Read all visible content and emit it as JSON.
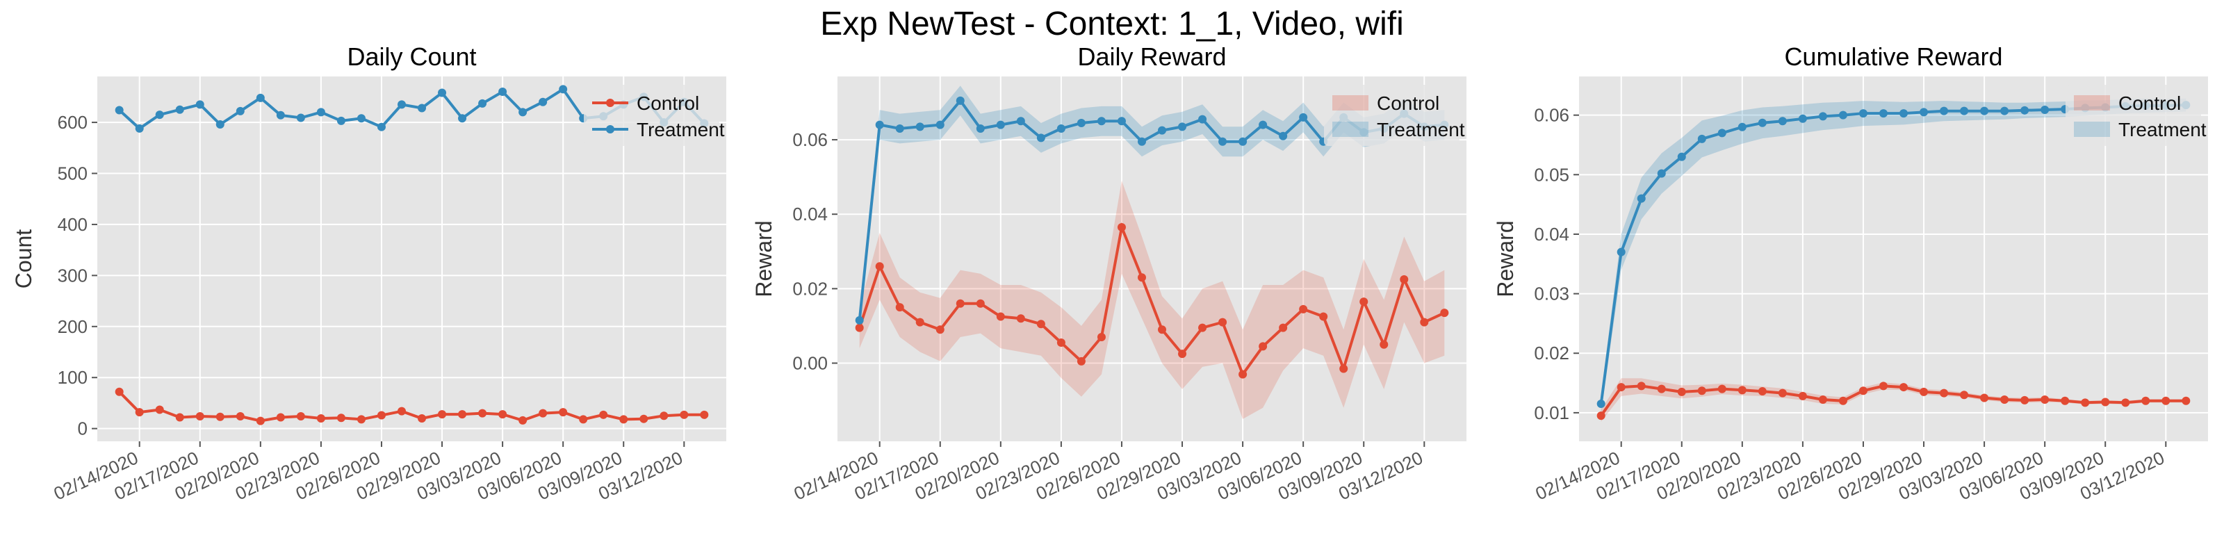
{
  "figure": {
    "title": "Exp NewTest - Context: 1_1, Video, wifi"
  },
  "colors": {
    "control": "#E24A33",
    "treatment": "#348ABD",
    "panel_bg": "#E5E5E5",
    "grid": "#FFFFFF"
  },
  "dates": [
    "02/13/2020",
    "02/14/2020",
    "02/15/2020",
    "02/16/2020",
    "02/17/2020",
    "02/18/2020",
    "02/19/2020",
    "02/20/2020",
    "02/21/2020",
    "02/22/2020",
    "02/23/2020",
    "02/24/2020",
    "02/25/2020",
    "02/26/2020",
    "02/27/2020",
    "02/28/2020",
    "02/29/2020",
    "03/01/2020",
    "03/02/2020",
    "03/03/2020",
    "03/04/2020",
    "03/05/2020",
    "03/06/2020",
    "03/07/2020",
    "03/08/2020",
    "03/09/2020",
    "03/10/2020",
    "03/11/2020",
    "03/12/2020",
    "03/13/2020"
  ],
  "x_ticks": [
    "02/14/2020",
    "02/17/2020",
    "02/20/2020",
    "02/23/2020",
    "02/26/2020",
    "02/29/2020",
    "03/03/2020",
    "03/06/2020",
    "03/09/2020",
    "03/12/2020"
  ],
  "chart_data": [
    {
      "type": "line",
      "title": "Daily Count",
      "xlabel": "",
      "ylabel": "Count",
      "ylim": [
        -25,
        690
      ],
      "y_ticks": [
        0,
        100,
        200,
        300,
        400,
        500,
        600
      ],
      "grid": true,
      "legend": {
        "placement": "top-right",
        "entries": [
          "Control",
          "Treatment"
        ]
      },
      "series": [
        {
          "name": "Control",
          "values": [
            72,
            32,
            37,
            22,
            24,
            23,
            24,
            15,
            22,
            24,
            20,
            21,
            18,
            26,
            34,
            20,
            28,
            28,
            30,
            28,
            16,
            30,
            32,
            18,
            27,
            18,
            19,
            25,
            27,
            27
          ]
        },
        {
          "name": "Treatment",
          "values": [
            624,
            588,
            615,
            625,
            635,
            596,
            622,
            648,
            614,
            609,
            620,
            603,
            608,
            591,
            635,
            628,
            658,
            608,
            637,
            660,
            620,
            640,
            665,
            608,
            612,
            635,
            650,
            600,
            640,
            598
          ]
        }
      ]
    },
    {
      "type": "area",
      "title": "Daily Reward",
      "xlabel": "",
      "ylabel": "Reward",
      "ylim": [
        -0.021,
        0.077
      ],
      "y_ticks": [
        "0.00",
        "0.02",
        "0.04",
        "0.06"
      ],
      "grid": true,
      "legend": {
        "placement": "top-right",
        "entries": [
          "Control",
          "Treatment"
        ]
      },
      "series": [
        {
          "name": "Control",
          "values": [
            0.0095,
            0.026,
            0.015,
            0.011,
            0.009,
            0.016,
            0.016,
            0.0125,
            0.012,
            0.0105,
            0.0055,
            0.0005,
            0.007,
            0.0365,
            0.023,
            0.009,
            0.0025,
            0.0095,
            0.011,
            -0.003,
            0.0045,
            0.0095,
            0.0145,
            0.0125,
            -0.0015,
            0.0165,
            0.005,
            0.0225,
            0.011,
            0.0135
          ],
          "lower": [
            0.004,
            0.017,
            0.007,
            0.003,
            0.0005,
            0.007,
            0.008,
            0.004,
            0.003,
            0.002,
            -0.004,
            -0.009,
            -0.003,
            0.024,
            0.012,
            0.0,
            -0.007,
            -0.001,
            0.0,
            -0.015,
            -0.012,
            -0.002,
            0.004,
            0.002,
            -0.012,
            0.005,
            -0.007,
            0.011,
            0.0,
            0.002
          ],
          "upper": [
            0.015,
            0.035,
            0.023,
            0.019,
            0.0175,
            0.025,
            0.024,
            0.021,
            0.021,
            0.019,
            0.015,
            0.01,
            0.017,
            0.049,
            0.034,
            0.018,
            0.012,
            0.02,
            0.022,
            0.009,
            0.021,
            0.021,
            0.025,
            0.023,
            0.009,
            0.028,
            0.017,
            0.034,
            0.022,
            0.025
          ]
        },
        {
          "name": "Treatment",
          "values": [
            0.0115,
            0.064,
            0.063,
            0.0635,
            0.064,
            0.0705,
            0.063,
            0.064,
            0.065,
            0.0605,
            0.063,
            0.0645,
            0.065,
            0.065,
            0.0595,
            0.0625,
            0.0635,
            0.0655,
            0.0595,
            0.0595,
            0.064,
            0.061,
            0.066,
            0.0595,
            0.066,
            0.062,
            0.063,
            0.067,
            0.0635,
            0.064
          ],
          "lower": [
            0.009,
            0.06,
            0.059,
            0.0595,
            0.06,
            0.0665,
            0.059,
            0.06,
            0.061,
            0.0565,
            0.059,
            0.0605,
            0.061,
            0.061,
            0.0555,
            0.0585,
            0.0595,
            0.0615,
            0.0555,
            0.0555,
            0.06,
            0.057,
            0.062,
            0.0555,
            0.062,
            0.058,
            0.059,
            0.063,
            0.0595,
            0.06
          ],
          "upper": [
            0.014,
            0.068,
            0.067,
            0.0675,
            0.068,
            0.0745,
            0.067,
            0.068,
            0.069,
            0.0645,
            0.067,
            0.0685,
            0.069,
            0.069,
            0.0635,
            0.0665,
            0.0675,
            0.0695,
            0.0635,
            0.0635,
            0.068,
            0.065,
            0.07,
            0.0635,
            0.07,
            0.066,
            0.067,
            0.071,
            0.0675,
            0.068
          ]
        }
      ]
    },
    {
      "type": "area",
      "title": "Cumulative Reward",
      "xlabel": "",
      "ylabel": "Reward",
      "ylim": [
        0.0052,
        0.0665
      ],
      "y_ticks": [
        "0.01",
        "0.02",
        "0.03",
        "0.04",
        "0.05",
        "0.06"
      ],
      "grid": true,
      "legend": {
        "placement": "top-right",
        "entries": [
          "Control",
          "Treatment"
        ]
      },
      "series": [
        {
          "name": "Control",
          "values": [
            0.0095,
            0.0143,
            0.0145,
            0.014,
            0.0135,
            0.0137,
            0.014,
            0.0138,
            0.0136,
            0.0133,
            0.0128,
            0.0122,
            0.012,
            0.0137,
            0.0145,
            0.0143,
            0.0135,
            0.0133,
            0.013,
            0.0125,
            0.0122,
            0.0121,
            0.0122,
            0.012,
            0.0117,
            0.0118,
            0.0117,
            0.012,
            0.012,
            0.012
          ],
          "lower": [
            0.0085,
            0.0128,
            0.0132,
            0.0128,
            0.0124,
            0.0127,
            0.0131,
            0.0129,
            0.0128,
            0.0125,
            0.0121,
            0.0115,
            0.0114,
            0.0131,
            0.0139,
            0.0138,
            0.013,
            0.0128,
            0.0126,
            0.0121,
            0.0118,
            0.0117,
            0.0118,
            0.0117,
            0.0114,
            0.0115,
            0.0114,
            0.0117,
            0.0117,
            0.0117
          ],
          "upper": [
            0.0105,
            0.0158,
            0.0158,
            0.0152,
            0.0146,
            0.0147,
            0.0149,
            0.0147,
            0.0144,
            0.0141,
            0.0135,
            0.0129,
            0.0126,
            0.0143,
            0.0151,
            0.0148,
            0.014,
            0.0138,
            0.0134,
            0.0129,
            0.0126,
            0.0125,
            0.0126,
            0.0123,
            0.012,
            0.0121,
            0.012,
            0.0123,
            0.0123,
            0.0123
          ]
        },
        {
          "name": "Treatment",
          "values": [
            0.0115,
            0.037,
            0.046,
            0.0502,
            0.053,
            0.056,
            0.057,
            0.058,
            0.0587,
            0.059,
            0.0594,
            0.0598,
            0.06,
            0.0603,
            0.0603,
            0.0603,
            0.0605,
            0.0607,
            0.0607,
            0.0607,
            0.0607,
            0.0608,
            0.0609,
            0.061,
            0.0612,
            0.0613,
            0.0615,
            0.0616,
            0.0616,
            0.0617
          ],
          "lower": [
            0.01,
            0.034,
            0.0425,
            0.0468,
            0.0498,
            0.0529,
            0.0541,
            0.0552,
            0.0561,
            0.0565,
            0.057,
            0.0575,
            0.0578,
            0.0582,
            0.0583,
            0.0584,
            0.0587,
            0.059,
            0.0591,
            0.0592,
            0.0593,
            0.0595,
            0.0596,
            0.0597,
            0.0599,
            0.0601,
            0.0603,
            0.0604,
            0.0605,
            0.0606
          ],
          "upper": [
            0.013,
            0.04,
            0.0495,
            0.0536,
            0.0562,
            0.0591,
            0.0599,
            0.0608,
            0.0613,
            0.0615,
            0.0618,
            0.0621,
            0.0622,
            0.0624,
            0.0623,
            0.0622,
            0.0623,
            0.0624,
            0.0623,
            0.0622,
            0.0621,
            0.0621,
            0.0622,
            0.0623,
            0.0625,
            0.0625,
            0.0627,
            0.0628,
            0.0627,
            0.0628
          ]
        }
      ]
    }
  ]
}
